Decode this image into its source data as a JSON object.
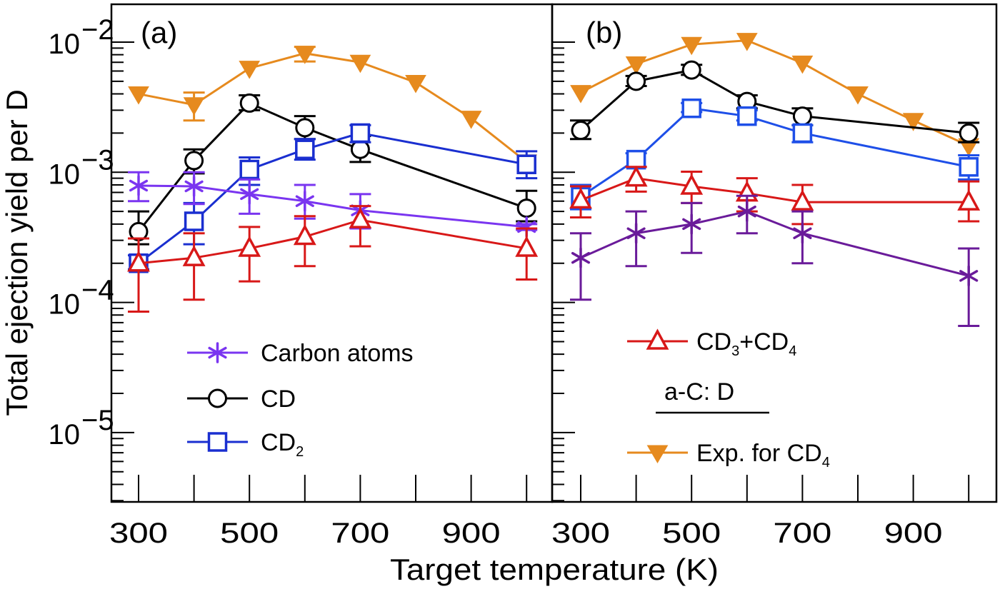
{
  "chart_data": {
    "type": "line",
    "ylabel": "Total ejection yield per D",
    "xlabel": "Target temperature (K)",
    "yscale": "log",
    "ylim": [
      3e-06,
      0.02
    ],
    "y_ticks": [
      {
        "value": 0.01,
        "base": "10",
        "exp": "−2"
      },
      {
        "value": 0.001,
        "base": "10",
        "exp": "−3"
      },
      {
        "value": 0.0001,
        "base": "10",
        "exp": "−4"
      },
      {
        "value": 1e-05,
        "base": "10",
        "exp": "−5"
      }
    ],
    "xlim": [
      250,
      1050
    ],
    "x_ticks": [
      300,
      400,
      500,
      600,
      700,
      800,
      900,
      1000
    ],
    "x_tick_labels": [
      "300",
      "500",
      "700",
      "900"
    ],
    "x_tick_label_values": [
      300,
      500,
      700,
      900
    ],
    "colors": {
      "carbon_a": "#7a35f0",
      "carbon_b": "#6a1b9a",
      "cd": "#000000",
      "cd2_a": "#1a2fd0",
      "cd2_b": "#1e4fe8",
      "cd3cd4": "#d81818",
      "exp": "#e68a1e"
    },
    "panels": [
      {
        "label": "(a)",
        "legend": [
          {
            "series": "carbon",
            "text": "Carbon atoms",
            "sub": ""
          },
          {
            "series": "cd",
            "text": "CD",
            "sub": ""
          },
          {
            "series": "cd2",
            "text": "CD",
            "sub": "2"
          }
        ],
        "legend_note": "",
        "series": [
          {
            "name": "Exp. for CD4",
            "key": "exp",
            "marker": "triangle-down-filled",
            "x": [
              300,
              400,
              500,
              600,
              700,
              800,
              900,
              1000
            ],
            "y": [
              0.004,
              0.0033,
              0.0063,
              0.0082,
              0.007,
              0.0049,
              0.0026,
              0.0012
            ],
            "err_low": [
              null,
              0.0025,
              null,
              0.0071,
              null,
              null,
              null,
              null
            ],
            "err_high": [
              null,
              0.0041,
              null,
              0.0092,
              null,
              null,
              null,
              null
            ]
          },
          {
            "name": "CD",
            "key": "cd",
            "marker": "circle-open",
            "x": [
              300,
              400,
              500,
              600,
              700,
              1000
            ],
            "y": [
              0.00035,
              0.00123,
              0.0034,
              0.0022,
              0.0015,
              0.00053
            ],
            "err_low": [
              0.00028,
              0.00098,
              0.003,
              0.0018,
              0.0012,
              0.00042
            ],
            "err_high": [
              0.0005,
              0.0015,
              0.0039,
              0.0027,
              0.0019,
              0.00072
            ]
          },
          {
            "name": "CD2",
            "key": "cd2",
            "marker": "square-open",
            "x": [
              300,
              400,
              500,
              600,
              700,
              1000
            ],
            "y": [
              0.0002,
              0.00042,
              0.00105,
              0.0015,
              0.002,
              0.00115
            ],
            "err_low": [
              0.00018,
              0.00028,
              0.0008,
              0.00125,
              0.0017,
              0.0009
            ],
            "err_high": [
              0.00023,
              0.00058,
              0.0013,
              0.0018,
              0.0023,
              0.00145
            ]
          },
          {
            "name": "Carbon atoms",
            "key": "carbon",
            "marker": "asterisk",
            "x": [
              300,
              400,
              500,
              600,
              700,
              1000
            ],
            "y": [
              0.00079,
              0.00078,
              0.00068,
              0.0006,
              0.00051,
              0.00038
            ],
            "err_low": [
              0.0006,
              0.00057,
              0.00048,
              0.00044,
              0.00037,
              0.00036
            ],
            "err_high": [
              0.001,
              0.001,
              0.00088,
              0.0008,
              0.00068,
              0.0004
            ]
          },
          {
            "name": "CD3+CD4",
            "key": "cd3cd4",
            "marker": "triangle-up-open",
            "x": [
              300,
              400,
              500,
              600,
              700,
              1000
            ],
            "y": [
              0.0002,
              0.00022,
              0.00026,
              0.00032,
              0.00043,
              0.00026
            ],
            "err_low": [
              8.5e-05,
              0.000105,
              0.000145,
              0.00019,
              0.00027,
              0.00015
            ],
            "err_high": [
              0.00031,
              0.00034,
              0.00038,
              0.00046,
              0.00055,
              0.00037
            ]
          }
        ]
      },
      {
        "label": "(b)",
        "legend": [
          {
            "series": "cd3cd4",
            "text": "CD",
            "sub": "3",
            "text2": "+CD",
            "sub2": "4"
          },
          {
            "series": "exp",
            "text": "Exp. for CD",
            "sub": "4"
          }
        ],
        "legend_note": "a-C: D",
        "series": [
          {
            "name": "Exp. for CD4",
            "key": "exp",
            "marker": "triangle-down-filled",
            "x": [
              300,
              400,
              500,
              600,
              700,
              800,
              900,
              1000
            ],
            "y": [
              0.0041,
              0.0068,
              0.0096,
              0.0103,
              0.0069,
              0.004,
              0.0025,
              0.0016
            ],
            "err_low": [
              null,
              null,
              null,
              null,
              null,
              null,
              null,
              null
            ],
            "err_high": [
              null,
              null,
              null,
              null,
              null,
              null,
              null,
              null
            ]
          },
          {
            "name": "CD",
            "key": "cd",
            "marker": "circle-open",
            "x": [
              300,
              400,
              500,
              600,
              700,
              1000
            ],
            "y": [
              0.0021,
              0.005,
              0.0061,
              0.0035,
              0.0027,
              0.002
            ],
            "err_low": [
              0.0018,
              0.0046,
              0.0056,
              0.0031,
              0.0023,
              0.0017
            ],
            "err_high": [
              0.0025,
              0.0055,
              0.0067,
              0.0039,
              0.0031,
              0.0024
            ]
          },
          {
            "name": "CD2",
            "key": "cd2",
            "marker": "square-open",
            "x": [
              300,
              400,
              500,
              600,
              700,
              1000
            ],
            "y": [
              0.00065,
              0.00125,
              0.0031,
              0.0027,
              0.002,
              0.0011
            ],
            "err_low": [
              0.00052,
              0.0011,
              0.0029,
              0.0025,
              0.0017,
              0.00088
            ],
            "err_high": [
              0.0008,
              0.0014,
              0.0034,
              0.003,
              0.0023,
              0.00135
            ]
          },
          {
            "name": "CD3+CD4",
            "key": "cd3cd4",
            "marker": "triangle-up-open",
            "x": [
              300,
              400,
              500,
              600,
              700,
              1000
            ],
            "y": [
              0.00061,
              0.0009,
              0.00078,
              0.00069,
              0.00059,
              0.00059
            ],
            "err_low": [
              0.00045,
              0.00071,
              0.00058,
              0.0005,
              0.0004,
              0.00042
            ],
            "err_high": [
              0.00078,
              0.0011,
              0.00101,
              0.0009,
              0.0008,
              0.00085
            ]
          },
          {
            "name": "Carbon atoms",
            "key": "carbon",
            "marker": "asterisk",
            "x": [
              300,
              400,
              500,
              600,
              700,
              1000
            ],
            "y": [
              0.00022,
              0.00034,
              0.0004,
              0.0005,
              0.00034,
              0.00016
            ],
            "err_low": [
              0.000105,
              0.00019,
              0.00024,
              0.00034,
              0.0002,
              6.6e-05
            ],
            "err_high": [
              0.00034,
              0.0005,
              0.00058,
              0.00066,
              0.0005,
              0.00026
            ]
          }
        ]
      }
    ]
  }
}
